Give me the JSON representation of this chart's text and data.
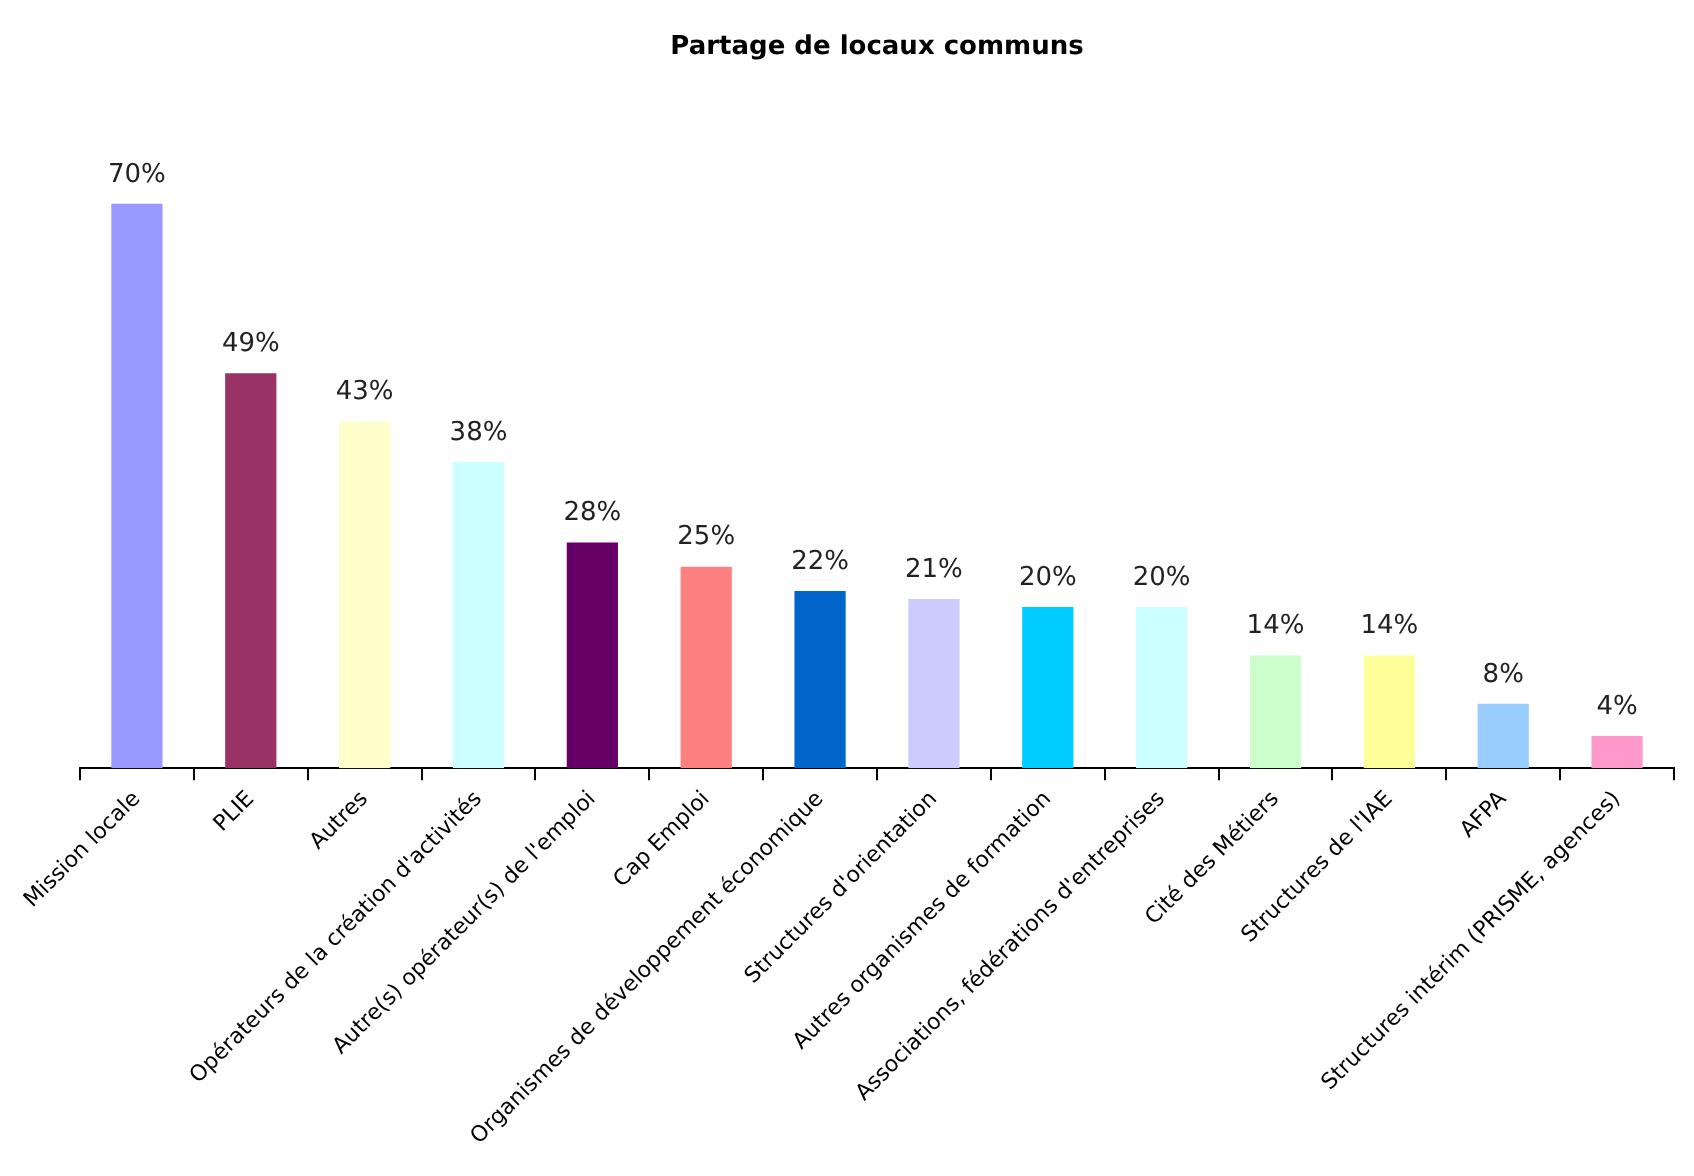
{
  "chart_data": {
    "type": "bar",
    "title": "Partage de locaux communs",
    "categories": [
      "Mission locale",
      "PLIE",
      "Autres",
      "Opérateurs de la création d'activités",
      "Autre(s) opérateur(s) de l'emploi",
      "Cap Emploi",
      "Organismes de développement économique",
      "Structures d'orientation",
      "Autres organismes de formation",
      "Associations, fédérations d'entreprises",
      "Cité des Métiers",
      "Structures de l'IAE",
      "AFPA",
      "Structures intérim (PRISME, agences)"
    ],
    "values": [
      70,
      49,
      43,
      38,
      28,
      25,
      22,
      21,
      20,
      20,
      14,
      14,
      8,
      4
    ],
    "value_labels": [
      "70%",
      "49%",
      "43%",
      "38%",
      "28%",
      "25%",
      "22%",
      "21%",
      "20%",
      "20%",
      "14%",
      "14%",
      "8%",
      "4%"
    ],
    "colors": [
      "#9999ff",
      "#993366",
      "#ffffcc",
      "#ccffff",
      "#660066",
      "#ff8080",
      "#0066cc",
      "#ccccff",
      "#00ccff",
      "#ccffff",
      "#ccffcc",
      "#ffff99",
      "#99ccff",
      "#ff99cc"
    ],
    "grid": false,
    "legend": false,
    "tick_labels": "x"
  }
}
